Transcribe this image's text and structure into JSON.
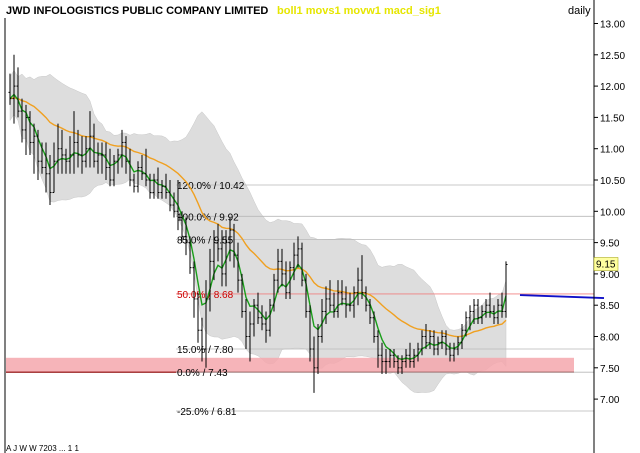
{
  "header": {
    "symbol": "JWD INFOLOGISTICS PUBLIC COMPANY LIMITED",
    "indicators": "boll1 movs1 movw1 macd_sig1",
    "period": "daily"
  },
  "footer": {
    "text": "A J W W 7203 ... 1 1"
  },
  "colors": {
    "background": "#ffffff",
    "band_fill": "#d9d9d9",
    "price": "#000000",
    "short_ma": "#1a9e1a",
    "long_ma": "#f0a020",
    "support_zone": "#f4a7ad",
    "resistance_line": "#1010c8",
    "fib_line": "#b8b8b8",
    "fib_50_line": "#f08080",
    "fib_50_text": "#cc0000",
    "header_indicators": "#e6e600",
    "last_price_box": "#ffffa0"
  },
  "chart_data": {
    "type": "line",
    "title": "JWD INFOLOGISTICS PUBLIC COMPANY LIMITED",
    "xlabel": "",
    "ylabel": "",
    "ylim": [
      6.8,
      13.1
    ],
    "y_ticks": [
      "7.00",
      "7.50",
      "8.00",
      "8.50",
      "9.00",
      "9.50",
      "10.00",
      "10.50",
      "11.00",
      "11.50",
      "12.00",
      "12.50",
      "13.00"
    ],
    "grid": false,
    "last_price": {
      "label": "9.15",
      "value": 9.15
    },
    "fibonacci": [
      {
        "pct": "120.0%",
        "price": 10.42,
        "label": "120.0% / 10.42"
      },
      {
        "pct": "100.0%",
        "price": 9.92,
        "label": "100.0% / 9.92"
      },
      {
        "pct": "85.0%",
        "price": 9.55,
        "label": "85.0% / 9.55"
      },
      {
        "pct": "50.0%",
        "price": 8.68,
        "label": "50.0% / 8.68"
      },
      {
        "pct": "15.0%",
        "price": 7.8,
        "label": "15.0% / 7.80"
      },
      {
        "pct": "0.0%",
        "price": 7.43,
        "label": "0.0% / 7.43"
      },
      {
        "pct": "-25.0%",
        "price": 6.81,
        "label": "-25.0% / 6.81"
      }
    ],
    "support_zone": [
      7.43,
      7.66
    ],
    "resistance_line": {
      "price": 8.63,
      "from_bar": 128,
      "to_bar": 148
    },
    "series": [
      {
        "style": "ohlc",
        "values": [
          [
            11.9,
            12.2,
            11.7,
            11.8
          ],
          [
            11.8,
            12.5,
            11.4,
            12.0
          ],
          [
            12.0,
            12.3,
            11.5,
            11.6
          ],
          [
            11.6,
            11.8,
            11.1,
            11.3
          ],
          [
            11.3,
            11.7,
            10.9,
            11.5
          ],
          [
            11.5,
            11.6,
            10.9,
            11.1
          ],
          [
            11.1,
            11.4,
            10.6,
            11.2
          ],
          [
            11.2,
            11.3,
            10.5,
            10.8
          ],
          [
            10.8,
            11.1,
            10.6,
            10.7
          ],
          [
            10.7,
            11.1,
            10.3,
            10.6
          ],
          [
            10.6,
            10.9,
            10.1,
            10.3
          ],
          [
            10.3,
            11.1,
            10.3,
            10.8
          ],
          [
            10.8,
            11.4,
            10.6,
            11.0
          ],
          [
            11.0,
            11.3,
            10.6,
            10.9
          ],
          [
            10.9,
            11.0,
            10.6,
            10.8
          ],
          [
            10.8,
            11.2,
            10.6,
            10.9
          ],
          [
            10.9,
            11.6,
            10.6,
            11.1
          ],
          [
            11.1,
            11.3,
            10.7,
            10.9
          ],
          [
            10.9,
            11.2,
            10.6,
            10.8
          ],
          [
            10.8,
            11.2,
            10.7,
            11.0
          ],
          [
            11.0,
            11.6,
            10.7,
            11.2
          ],
          [
            11.2,
            11.4,
            10.7,
            10.8
          ],
          [
            10.8,
            11.1,
            10.6,
            10.9
          ],
          [
            10.9,
            11.1,
            10.6,
            10.9
          ],
          [
            10.9,
            11.1,
            10.5,
            10.7
          ],
          [
            10.7,
            11.0,
            10.4,
            10.5
          ],
          [
            10.5,
            10.9,
            10.4,
            10.8
          ],
          [
            10.8,
            11.0,
            10.6,
            10.9
          ],
          [
            10.9,
            11.3,
            10.7,
            11.1
          ],
          [
            11.1,
            11.2,
            10.6,
            10.8
          ],
          [
            10.8,
            11.0,
            10.4,
            10.5
          ],
          [
            10.5,
            10.6,
            10.3,
            10.4
          ],
          [
            10.4,
            10.8,
            10.3,
            10.7
          ],
          [
            10.7,
            10.9,
            10.5,
            10.6
          ],
          [
            10.6,
            11.0,
            10.4,
            10.5
          ],
          [
            10.5,
            10.6,
            10.2,
            10.3
          ],
          [
            10.3,
            10.6,
            10.2,
            10.5
          ],
          [
            10.5,
            10.7,
            10.2,
            10.3
          ],
          [
            10.3,
            10.5,
            10.2,
            10.4
          ],
          [
            10.4,
            10.6,
            10.2,
            10.3
          ],
          [
            10.3,
            10.5,
            10.0,
            10.1
          ],
          [
            10.1,
            10.3,
            9.9,
            10.0
          ],
          [
            10.0,
            10.5,
            9.7,
            9.9
          ],
          [
            9.9,
            10.0,
            9.5,
            9.6
          ],
          [
            9.6,
            9.9,
            9.3,
            9.5
          ],
          [
            9.5,
            9.6,
            9.0,
            9.1
          ],
          [
            9.1,
            9.2,
            8.3,
            8.6
          ],
          [
            8.6,
            8.7,
            7.9,
            8.1
          ],
          [
            8.1,
            8.3,
            7.6,
            7.8
          ],
          [
            7.8,
            8.9,
            7.5,
            8.6
          ],
          [
            8.6,
            9.4,
            8.4,
            9.2
          ],
          [
            9.2,
            9.7,
            8.9,
            9.5
          ],
          [
            9.5,
            9.8,
            9.2,
            9.4
          ],
          [
            9.4,
            9.7,
            8.8,
            9.0
          ],
          [
            9.0,
            9.7,
            8.8,
            9.5
          ],
          [
            9.5,
            9.9,
            9.2,
            9.7
          ],
          [
            9.7,
            9.8,
            9.1,
            9.3
          ],
          [
            9.3,
            9.5,
            8.7,
            8.9
          ],
          [
            8.9,
            9.0,
            8.3,
            8.4
          ],
          [
            8.4,
            8.6,
            7.8,
            8.0
          ],
          [
            8.0,
            8.4,
            7.6,
            8.2
          ],
          [
            8.2,
            8.6,
            8.0,
            8.5
          ],
          [
            8.5,
            8.7,
            8.2,
            8.3
          ],
          [
            8.3,
            8.5,
            8.1,
            8.2
          ],
          [
            8.2,
            8.4,
            7.9,
            8.1
          ],
          [
            8.1,
            8.6,
            8.0,
            8.5
          ],
          [
            8.5,
            9.0,
            8.4,
            8.9
          ],
          [
            8.9,
            9.4,
            8.7,
            9.2
          ],
          [
            9.2,
            9.4,
            8.8,
            9.0
          ],
          [
            9.0,
            9.2,
            8.6,
            8.7
          ],
          [
            8.7,
            9.2,
            8.6,
            9.1
          ],
          [
            9.1,
            9.5,
            8.9,
            9.3
          ],
          [
            9.3,
            9.6,
            9.1,
            9.4
          ],
          [
            9.4,
            9.5,
            8.8,
            8.9
          ],
          [
            8.9,
            9.0,
            8.3,
            8.4
          ],
          [
            8.4,
            8.5,
            7.6,
            7.8
          ],
          [
            7.8,
            8.0,
            7.1,
            7.5
          ],
          [
            7.5,
            8.2,
            7.4,
            8.0
          ],
          [
            8.0,
            8.6,
            7.9,
            8.4
          ],
          [
            8.4,
            8.8,
            8.2,
            8.6
          ],
          [
            8.6,
            8.9,
            8.4,
            8.5
          ],
          [
            8.5,
            8.7,
            8.3,
            8.4
          ],
          [
            8.4,
            8.9,
            8.3,
            8.7
          ],
          [
            8.7,
            8.9,
            8.5,
            8.6
          ],
          [
            8.6,
            8.8,
            8.3,
            8.5
          ],
          [
            8.5,
            8.7,
            8.4,
            8.5
          ],
          [
            8.5,
            8.8,
            8.3,
            8.7
          ],
          [
            8.7,
            9.1,
            8.5,
            8.9
          ],
          [
            8.9,
            9.3,
            8.6,
            8.7
          ],
          [
            8.7,
            8.8,
            8.4,
            8.5
          ],
          [
            8.5,
            8.6,
            8.2,
            8.3
          ],
          [
            8.3,
            8.4,
            7.9,
            8.0
          ],
          [
            8.0,
            8.1,
            7.5,
            7.7
          ],
          [
            7.7,
            7.9,
            7.4,
            7.6
          ],
          [
            7.6,
            7.8,
            7.4,
            7.6
          ],
          [
            7.6,
            7.8,
            7.5,
            7.7
          ],
          [
            7.7,
            7.8,
            7.5,
            7.6
          ],
          [
            7.6,
            7.7,
            7.4,
            7.5
          ],
          [
            7.5,
            7.7,
            7.4,
            7.6
          ],
          [
            7.6,
            7.8,
            7.5,
            7.7
          ],
          [
            7.7,
            7.9,
            7.5,
            7.6
          ],
          [
            7.6,
            7.8,
            7.5,
            7.7
          ],
          [
            7.7,
            7.9,
            7.6,
            7.8
          ],
          [
            7.8,
            8.1,
            7.7,
            8.0
          ],
          [
            8.0,
            8.2,
            7.8,
            7.9
          ],
          [
            7.9,
            8.1,
            7.8,
            8.0
          ],
          [
            8.0,
            8.1,
            7.7,
            7.8
          ],
          [
            7.8,
            8.0,
            7.7,
            7.9
          ],
          [
            7.9,
            8.1,
            7.8,
            8.0
          ],
          [
            8.0,
            8.1,
            7.7,
            7.8
          ],
          [
            7.8,
            7.9,
            7.6,
            7.7
          ],
          [
            7.7,
            7.9,
            7.6,
            7.8
          ],
          [
            7.8,
            8.0,
            7.7,
            7.9
          ],
          [
            7.9,
            8.2,
            7.8,
            8.1
          ],
          [
            8.1,
            8.4,
            8.0,
            8.3
          ],
          [
            8.3,
            8.5,
            8.1,
            8.4
          ],
          [
            8.4,
            8.6,
            8.2,
            8.5
          ],
          [
            8.5,
            8.6,
            8.2,
            8.3
          ],
          [
            8.3,
            8.5,
            8.2,
            8.4
          ],
          [
            8.4,
            8.6,
            8.3,
            8.5
          ],
          [
            8.5,
            8.7,
            8.3,
            8.4
          ],
          [
            8.4,
            8.5,
            8.2,
            8.3
          ],
          [
            8.3,
            8.6,
            8.2,
            8.5
          ],
          [
            8.5,
            8.7,
            8.3,
            8.4
          ],
          [
            8.4,
            9.2,
            8.3,
            9.15
          ]
        ]
      },
      {
        "name": "movs1",
        "style": "line"
      },
      {
        "name": "movw1",
        "style": "line"
      },
      {
        "name": "boll1",
        "style": "band"
      }
    ]
  }
}
